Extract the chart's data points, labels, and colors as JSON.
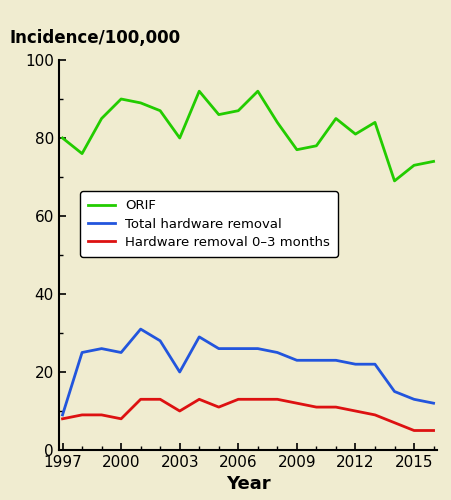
{
  "years": [
    1997,
    1998,
    1999,
    2000,
    2001,
    2002,
    2003,
    2004,
    2005,
    2006,
    2007,
    2008,
    2009,
    2010,
    2011,
    2012,
    2013,
    2014,
    2015,
    2016
  ],
  "orif": [
    80,
    76,
    85,
    90,
    89,
    87,
    80,
    92,
    86,
    87,
    92,
    84,
    77,
    78,
    85,
    81,
    84,
    69,
    73,
    74
  ],
  "total_hw": [
    9,
    25,
    26,
    25,
    31,
    28,
    20,
    29,
    26,
    26,
    26,
    25,
    23,
    23,
    23,
    22,
    22,
    15,
    13,
    12
  ],
  "hw_0_3": [
    8,
    9,
    9,
    8,
    13,
    13,
    10,
    13,
    11,
    13,
    13,
    13,
    12,
    11,
    11,
    10,
    9,
    7,
    5,
    5
  ],
  "orif_color": "#22cc00",
  "total_hw_color": "#2255dd",
  "hw_0_3_color": "#dd1111",
  "bg_color": "#f0ecd0",
  "title": "Incidence/100,000",
  "xlabel": "Year",
  "ylim": [
    0,
    100
  ],
  "xlim": [
    1997,
    2016
  ],
  "yticks": [
    0,
    20,
    40,
    60,
    80,
    100
  ],
  "xticks": [
    1997,
    2000,
    2003,
    2006,
    2009,
    2012,
    2015
  ],
  "legend_labels": [
    "ORIF",
    "Total hardware removal",
    "Hardware removal 0–3 months"
  ],
  "linewidth": 2.0
}
